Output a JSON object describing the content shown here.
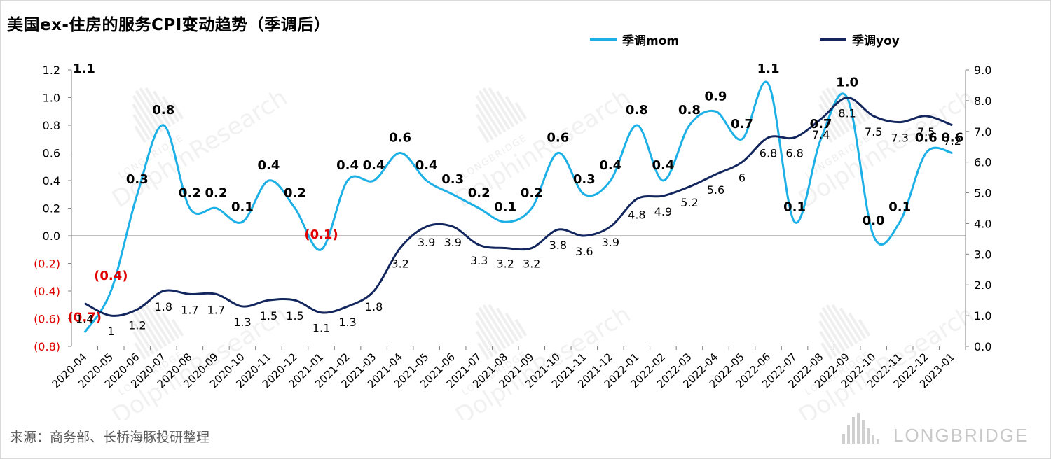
{
  "title": "美国ex-住房的服务CPI变动趋势（季调后）",
  "source": "来源：商务部、长桥海豚投研整理",
  "brand": "LONGBRIDGE",
  "watermark": {
    "top": "LONGBRIDGE",
    "main": "DolphinResearch"
  },
  "colors": {
    "mom": "#1cb0e6",
    "yoy": "#13275e",
    "negative": "#e00000",
    "axis": "#7f7f7f"
  },
  "chart_data": {
    "type": "line",
    "title": "美国ex-住房的服务CPI变动趋势（季调后）",
    "legend_position": "top-right",
    "grid": false,
    "categories": [
      "2020-04",
      "2020-05",
      "2020-06",
      "2020-07",
      "2020-08",
      "2020-09",
      "2020-10",
      "2020-11",
      "2020-12",
      "2021-01",
      "2021-02",
      "2021-03",
      "2021-04",
      "2021-05",
      "2021-06",
      "2021-07",
      "2021-08",
      "2021-09",
      "2021-10",
      "2021-11",
      "2021-12",
      "2022-01",
      "2022-02",
      "2022-03",
      "2022-04",
      "2022-05",
      "2022-06",
      "2022-07",
      "2022-08",
      "2022-09",
      "2022-10",
      "2022-11",
      "2022-12",
      "2023-01"
    ],
    "series": [
      {
        "name": "季调mom",
        "axis": "left",
        "values": [
          -0.7,
          -0.4,
          0.3,
          0.8,
          0.2,
          0.2,
          0.1,
          0.4,
          0.2,
          -0.1,
          0.4,
          0.4,
          0.6,
          0.4,
          0.3,
          0.2,
          0.1,
          0.2,
          0.6,
          0.3,
          0.4,
          0.8,
          0.4,
          0.8,
          0.9,
          0.7,
          1.1,
          0.1,
          0.7,
          1.0,
          0.0,
          0.1,
          0.6,
          0.6
        ],
        "labels": [
          "(0.7)",
          "(0.4)",
          "0.3",
          "0.8",
          "0.2",
          "0.2",
          "0.1",
          "0.4",
          "0.2",
          "(0.1)",
          "0.4",
          "0.4",
          "0.6",
          "0.4",
          "0.3",
          "0.2",
          "0.1",
          "0.2",
          "0.6",
          "0.3",
          "0.4",
          "0.8",
          "0.4",
          "0.8",
          "0.9",
          "0.7",
          "1.1",
          "0.1",
          "0.7",
          "1.0",
          "0.0",
          "0.1",
          "0.6",
          "0.6"
        ]
      },
      {
        "name": "季调yoy",
        "axis": "right",
        "values": [
          1.4,
          1,
          1.2,
          1.8,
          1.7,
          1.7,
          1.3,
          1.5,
          1.5,
          1.1,
          1.3,
          1.8,
          3.2,
          3.9,
          3.9,
          3.3,
          3.2,
          3.2,
          3.8,
          3.6,
          3.9,
          4.8,
          4.9,
          5.2,
          5.6,
          6,
          6.8,
          6.8,
          7.4,
          8.1,
          7.5,
          7.3,
          7.5,
          7.2
        ],
        "labels": [
          "1.4",
          "1",
          "1.2",
          "1.8",
          "1.7",
          "1.7",
          "1.3",
          "1.5",
          "1.5",
          "1.1",
          "1.3",
          "1.8",
          "3.2",
          "3.9",
          "3.9",
          "3.3",
          "3.2",
          "3.2",
          "3.8",
          "3.6",
          "3.9",
          "4.8",
          "4.9",
          "5.2",
          "5.6",
          "6",
          "6.8",
          "6.8",
          "7.4",
          "8.1",
          "7.5",
          "7.3",
          "7.5",
          "7.2"
        ]
      }
    ],
    "extra_label": "1.1",
    "left_axis": {
      "ylim": [
        -0.8,
        1.2
      ],
      "ticks": [
        "(0.8)",
        "(0.6)",
        "(0.4)",
        "(0.2)",
        "0.0",
        "0.2",
        "0.4",
        "0.6",
        "0.8",
        "1.0",
        "1.2"
      ]
    },
    "right_axis": {
      "ylim": [
        0,
        9
      ],
      "ticks": [
        "0.0",
        "1.0",
        "2.0",
        "3.0",
        "4.0",
        "5.0",
        "6.0",
        "7.0",
        "8.0",
        "9.0"
      ]
    }
  }
}
